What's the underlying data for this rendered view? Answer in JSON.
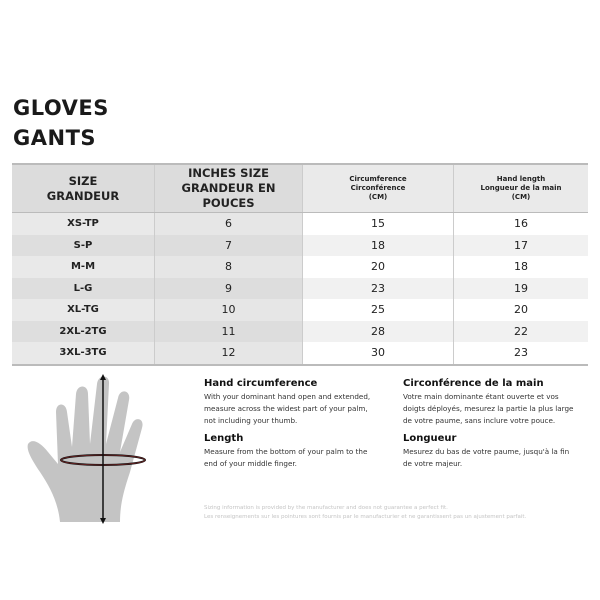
{
  "title_en": "GLOVES",
  "title_fr": "GANTS",
  "table": {
    "headers": [
      [
        "SIZE",
        "GRANDEUR"
      ],
      [
        "INCHES SIZE",
        "GRANDEUR EN POUCES"
      ],
      [
        "Circumference",
        "Circonférence",
        "(CM)"
      ],
      [
        "Hand length",
        "Longueur de la main",
        "(CM)"
      ]
    ],
    "rows": [
      [
        "XS-TP",
        "6",
        "15",
        "16"
      ],
      [
        "S-P",
        "7",
        "18",
        "17"
      ],
      [
        "M-M",
        "8",
        "20",
        "18"
      ],
      [
        "L-G",
        "9",
        "23",
        "19"
      ],
      [
        "XL-TG",
        "10",
        "25",
        "20"
      ],
      [
        "2XL-2TG",
        "11",
        "28",
        "22"
      ],
      [
        "3XL-3TG",
        "12",
        "30",
        "23"
      ]
    ]
  },
  "instructions": {
    "en": {
      "circ_title": "Hand circumference",
      "circ_text": "With your dominant hand open and extended, measure across the widest part of your palm, not including your thumb.",
      "len_title": "Length",
      "len_text": "Measure from the bottom of your palm to the end of your middle finger."
    },
    "fr": {
      "circ_title": "Circonférence de la main",
      "circ_text": "Votre main dominante étant ouverte et vos doigts déployés, mesurez la partie la plus large de votre paume, sans inclure votre pouce.",
      "len_title": "Longueur",
      "len_text": "Mesurez du bas de votre paume, jusqu'à la fin de votre majeur."
    }
  },
  "disclaimer": [
    "Sizing information is provided by the manufacturer and does not guarantee a perfect fit.",
    "Les renseignements sur les pointures sont fournis par le manufacturier et ne garantissent pas un ajustement parfait."
  ],
  "illustration_icon": "hand-measurement-icon"
}
